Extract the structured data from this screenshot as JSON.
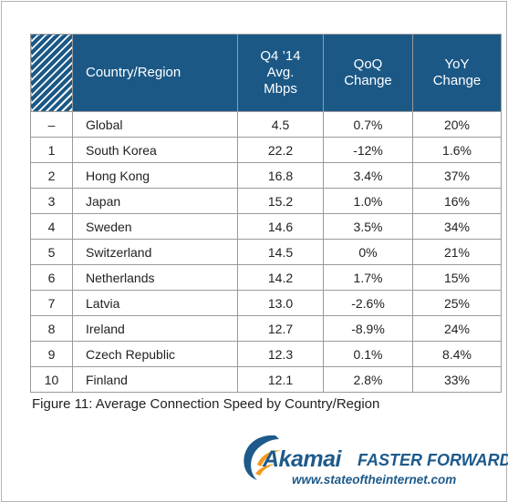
{
  "table": {
    "headers": {
      "rank": "",
      "country": "Country/Region",
      "avg_line1": "Q4 ’14",
      "avg_line2": "Avg.",
      "avg_line3": "Mbps",
      "qoq_line1": "QoQ",
      "qoq_line2": "Change",
      "yoy_line1": "YoY",
      "yoy_line2": "Change"
    },
    "rows": [
      {
        "rank": "–",
        "country": "Global",
        "avg": "4.5",
        "qoq": "0.7%",
        "yoy": "20%"
      },
      {
        "rank": "1",
        "country": "South Korea",
        "avg": "22.2",
        "qoq": "-12%",
        "yoy": "1.6%"
      },
      {
        "rank": "2",
        "country": "Hong Kong",
        "avg": "16.8",
        "qoq": "3.4%",
        "yoy": "37%"
      },
      {
        "rank": "3",
        "country": "Japan",
        "avg": "15.2",
        "qoq": "1.0%",
        "yoy": "16%"
      },
      {
        "rank": "4",
        "country": "Sweden",
        "avg": "14.6",
        "qoq": "3.5%",
        "yoy": "34%"
      },
      {
        "rank": "5",
        "country": "Switzerland",
        "avg": "14.5",
        "qoq": "0%",
        "yoy": "21%"
      },
      {
        "rank": "6",
        "country": "Netherlands",
        "avg": "14.2",
        "qoq": "1.7%",
        "yoy": "15%"
      },
      {
        "rank": "7",
        "country": "Latvia",
        "avg": "13.0",
        "qoq": "-2.6%",
        "yoy": "25%"
      },
      {
        "rank": "8",
        "country": "Ireland",
        "avg": "12.7",
        "qoq": "-8.9%",
        "yoy": "24%"
      },
      {
        "rank": "9",
        "country": "Czech Republic",
        "avg": "12.3",
        "qoq": "0.1%",
        "yoy": "8.4%"
      },
      {
        "rank": "10",
        "country": "Finland",
        "avg": "12.1",
        "qoq": "2.8%",
        "yoy": "33%"
      }
    ]
  },
  "caption": "Figure 11: Average Connection Speed by Country/Region",
  "logo": {
    "brand": "Akamai",
    "tagline": "FASTER FORWARD",
    "url": "www.stateoftheinternet.com"
  },
  "colors": {
    "header_bg": "#1b5886",
    "brand_blue": "#1d5a8b",
    "brand_orange": "#f39a1e"
  }
}
